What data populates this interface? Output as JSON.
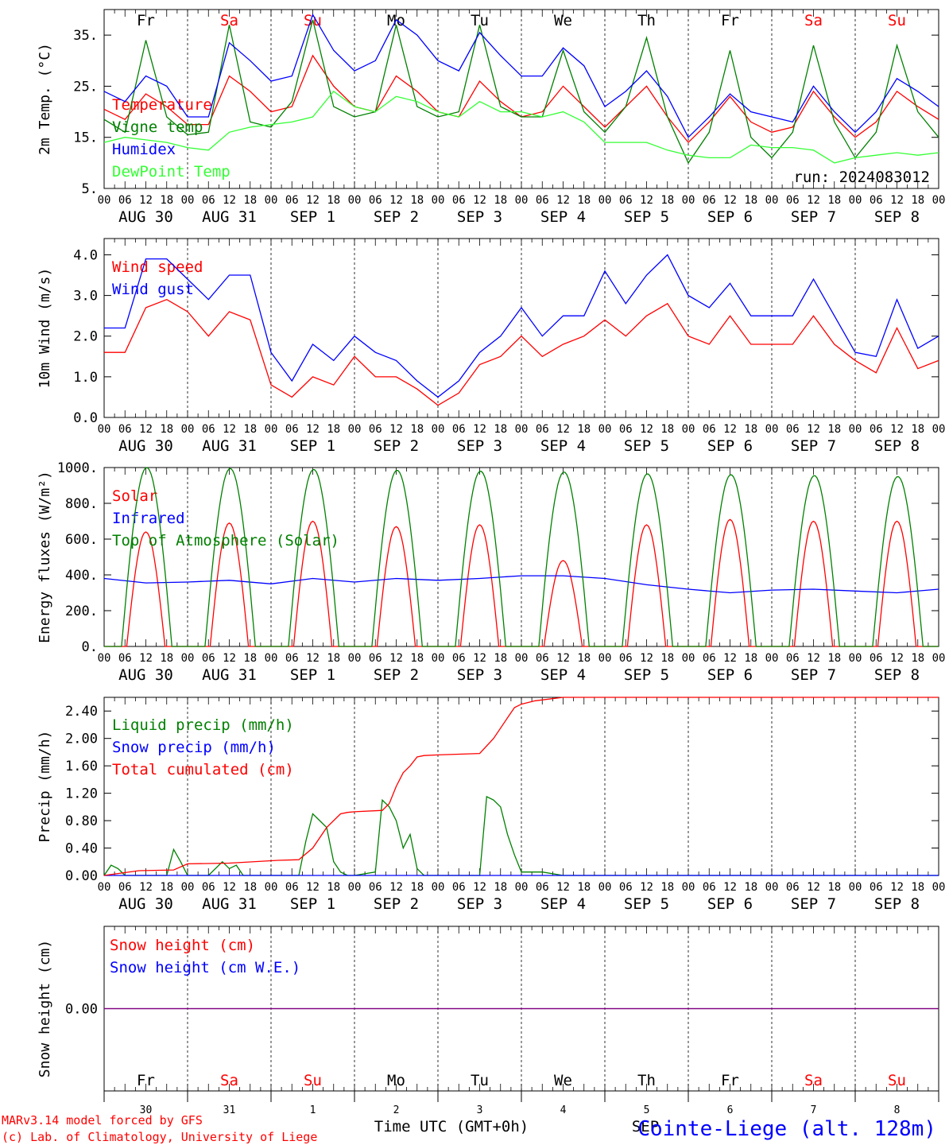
{
  "colors": {
    "red": "#ff0000",
    "darkgreen": "#008000",
    "blue": "#0000ff",
    "lightgreen": "#33ff33",
    "purple": "#800080",
    "weekday": "#000000",
    "weekend": "#ff0000"
  },
  "day_names": [
    {
      "name": "Fr",
      "weekend": false
    },
    {
      "name": "Sa",
      "weekend": true
    },
    {
      "name": "Su",
      "weekend": true
    },
    {
      "name": "Mo",
      "weekend": false
    },
    {
      "name": "Tu",
      "weekend": false
    },
    {
      "name": "We",
      "weekend": false
    },
    {
      "name": "Th",
      "weekend": false
    },
    {
      "name": "Fr",
      "weekend": false
    },
    {
      "name": "Sa",
      "weekend": true
    },
    {
      "name": "Su",
      "weekend": true
    }
  ],
  "date_labels": [
    "AUG 30",
    "AUG 31",
    "SEP  1",
    "SEP  2",
    "SEP  3",
    "SEP  4",
    "SEP  5",
    "SEP  6",
    "SEP  7",
    "SEP  8"
  ],
  "hour_labels": [
    "00",
    "06",
    "12",
    "18"
  ],
  "hour_end_label": "00",
  "day_numbers": [
    "30",
    "31",
    "1",
    "2",
    "3",
    "4",
    "5",
    "6",
    "7",
    "8"
  ],
  "footer": {
    "model": "MARv3.14 model forced by GFS",
    "lab": "(c) Lab. of Climatology, University of Liege",
    "time_axis": "Time UTC (GMT+0h)",
    "month": "SEP",
    "station": "Cointe-Liege (alt. 128m)"
  },
  "chart_data": [
    {
      "type": "line",
      "ylabel": "2m Temp. (°C)",
      "ylim": [
        5,
        40
      ],
      "yticks": [
        "5.",
        "15.",
        "25.",
        "35."
      ],
      "annotation": "run: 2024083012",
      "x_unit": "hours since AUG 30 00 UTC",
      "series": [
        {
          "name": "Temperature",
          "color": "red",
          "x": [
            0,
            6,
            12,
            18,
            24,
            30,
            36,
            42,
            48,
            54,
            60,
            66,
            72,
            78,
            84,
            90,
            96,
            102,
            108,
            114,
            120,
            126,
            132,
            138,
            144,
            150,
            156,
            162,
            168,
            174,
            180,
            186,
            192,
            198,
            204,
            210,
            216,
            222,
            228,
            234,
            240
          ],
          "y": [
            20.5,
            18.5,
            23.5,
            21,
            17.5,
            17.5,
            27,
            24,
            20,
            21,
            31,
            25,
            21,
            20,
            27,
            24,
            20,
            19,
            26,
            22,
            19,
            20,
            25,
            21,
            17,
            21,
            25,
            19,
            14,
            18,
            23,
            18,
            16,
            17,
            24,
            19,
            15,
            18,
            24,
            21,
            18.5
          ]
        },
        {
          "name": "Vigne temp",
          "color": "darkgreen",
          "x": [
            0,
            6,
            12,
            18,
            24,
            30,
            36,
            42,
            48,
            54,
            60,
            66,
            72,
            78,
            84,
            90,
            96,
            102,
            108,
            114,
            120,
            126,
            132,
            138,
            144,
            150,
            156,
            162,
            168,
            174,
            180,
            186,
            192,
            198,
            204,
            210,
            216,
            222,
            228,
            234,
            240
          ],
          "y": [
            18.5,
            16,
            34,
            19,
            15.5,
            16,
            37,
            18,
            17,
            22,
            38,
            21,
            19,
            20,
            37,
            21,
            19,
            20,
            37,
            21,
            19,
            19,
            32,
            20,
            16,
            21,
            34.5,
            19,
            10,
            16,
            32,
            15,
            11,
            16,
            33,
            18,
            11,
            16,
            33,
            20,
            15
          ]
        },
        {
          "name": "Humidex",
          "color": "blue",
          "x": [
            0,
            6,
            12,
            18,
            24,
            30,
            36,
            42,
            48,
            54,
            60,
            66,
            72,
            78,
            84,
            90,
            96,
            102,
            108,
            114,
            120,
            126,
            132,
            138,
            144,
            150,
            156,
            162,
            168,
            174,
            180,
            186,
            192,
            198,
            204,
            210,
            216,
            222,
            228,
            234,
            240
          ],
          "y": [
            24,
            22,
            27,
            25,
            19,
            19,
            33.5,
            30,
            26,
            27,
            39,
            32,
            28,
            30,
            38,
            35,
            30,
            28,
            35.5,
            31,
            27,
            27,
            32.5,
            29,
            21,
            24,
            28,
            23,
            15,
            19,
            23.5,
            20,
            19,
            18,
            25,
            20,
            16,
            20,
            26.5,
            24,
            21
          ]
        },
        {
          "name": "DewPoint Temp",
          "color": "lightgreen",
          "x": [
            0,
            6,
            12,
            18,
            24,
            30,
            36,
            42,
            48,
            54,
            60,
            66,
            72,
            78,
            84,
            90,
            96,
            102,
            108,
            114,
            120,
            126,
            132,
            138,
            144,
            150,
            156,
            162,
            168,
            174,
            180,
            186,
            192,
            198,
            204,
            210,
            216,
            222,
            228,
            234,
            240
          ],
          "y": [
            14,
            15,
            14.5,
            14,
            13,
            12.5,
            16,
            17,
            17.5,
            18,
            19,
            24,
            21,
            20,
            23,
            22,
            20,
            19,
            22,
            20,
            20,
            19,
            20,
            18,
            14,
            14,
            14,
            12.5,
            11.5,
            11,
            11,
            13.5,
            13,
            13,
            12.5,
            10,
            11,
            11.5,
            12,
            11.5,
            12
          ]
        }
      ]
    },
    {
      "type": "line",
      "ylabel": "10m Wind (m/s)",
      "ylim": [
        0,
        4.4
      ],
      "yticks": [
        "0.0",
        "1.0",
        "2.0",
        "3.0",
        "4.0"
      ],
      "x_unit": "hours since AUG 30 00 UTC",
      "series": [
        {
          "name": "Wind speed",
          "color": "red",
          "x": [
            0,
            6,
            12,
            18,
            24,
            30,
            36,
            42,
            48,
            54,
            60,
            66,
            72,
            78,
            84,
            90,
            96,
            102,
            108,
            114,
            120,
            126,
            132,
            138,
            144,
            150,
            156,
            162,
            168,
            174,
            180,
            186,
            192,
            198,
            204,
            210,
            216,
            222,
            228,
            234,
            240
          ],
          "y": [
            1.6,
            1.6,
            2.7,
            2.9,
            2.6,
            2.0,
            2.6,
            2.4,
            0.8,
            0.5,
            1.0,
            0.8,
            1.5,
            1.0,
            1.0,
            0.7,
            0.3,
            0.6,
            1.3,
            1.5,
            2.0,
            1.5,
            1.8,
            2.0,
            2.4,
            2.0,
            2.5,
            2.8,
            2.0,
            1.8,
            2.5,
            1.8,
            1.8,
            1.8,
            2.5,
            1.8,
            1.4,
            1.1,
            2.2,
            1.2,
            1.4
          ]
        },
        {
          "name": "Wind gust",
          "color": "blue",
          "x": [
            0,
            6,
            12,
            18,
            24,
            30,
            36,
            42,
            48,
            54,
            60,
            66,
            72,
            78,
            84,
            90,
            96,
            102,
            108,
            114,
            120,
            126,
            132,
            138,
            144,
            150,
            156,
            162,
            168,
            174,
            180,
            186,
            192,
            198,
            204,
            210,
            216,
            222,
            228,
            234,
            240
          ],
          "y": [
            2.2,
            2.2,
            3.9,
            3.9,
            3.4,
            2.9,
            3.5,
            3.5,
            1.6,
            0.9,
            1.8,
            1.4,
            2.0,
            1.6,
            1.4,
            0.9,
            0.5,
            0.9,
            1.6,
            2.0,
            2.7,
            2.0,
            2.5,
            2.5,
            3.6,
            2.8,
            3.5,
            4.0,
            3.0,
            2.7,
            3.3,
            2.5,
            2.5,
            2.5,
            3.4,
            2.5,
            1.6,
            1.5,
            2.9,
            1.7,
            2.0
          ]
        }
      ]
    },
    {
      "type": "line",
      "ylabel": "Energy fluxes (W/m²)",
      "ylim": [
        0,
        1000
      ],
      "yticks": [
        "0.",
        "200.",
        "400.",
        "600.",
        "800.",
        "1000."
      ],
      "x_unit": "hours since AUG 30 00 UTC",
      "series": [
        {
          "name": "Solar",
          "color": "red",
          "peaks": [
            640,
            690,
            700,
            670,
            680,
            480,
            680,
            710,
            700,
            700
          ]
        },
        {
          "name": "Infrared",
          "color": "blue",
          "x": [
            0,
            12,
            24,
            36,
            48,
            60,
            72,
            84,
            96,
            108,
            120,
            132,
            144,
            156,
            168,
            180,
            192,
            204,
            216,
            228,
            240
          ],
          "y": [
            380,
            355,
            360,
            370,
            350,
            380,
            360,
            380,
            370,
            380,
            395,
            395,
            380,
            345,
            320,
            300,
            315,
            320,
            310,
            300,
            320
          ]
        },
        {
          "name": "Top of Atmosphere (Solar)",
          "color": "darkgreen",
          "peaks": [
            1000,
            995,
            990,
            985,
            980,
            975,
            965,
            960,
            955,
            950
          ]
        }
      ]
    },
    {
      "type": "line",
      "ylabel": "Precip (mm/h)",
      "ylim": [
        0,
        2.6
      ],
      "yticks": [
        "0.00",
        "0.40",
        "0.80",
        "1.20",
        "1.60",
        "2.00",
        "2.40"
      ],
      "x_unit": "hours since AUG 30 00 UTC",
      "series": [
        {
          "name": "Liquid precip (mm/h)",
          "color": "darkgreen",
          "x": [
            0,
            2,
            4,
            6,
            12,
            18,
            20,
            22,
            24,
            30,
            34,
            36,
            38,
            40,
            48,
            56,
            58,
            60,
            62,
            64,
            66,
            68,
            70,
            72,
            78,
            80,
            82,
            84,
            86,
            88,
            90,
            92,
            96,
            108,
            110,
            112,
            114,
            116,
            118,
            120,
            126,
            132,
            240
          ],
          "y": [
            0,
            0.15,
            0.1,
            0,
            0,
            0,
            0.38,
            0.2,
            0,
            0,
            0.2,
            0.1,
            0.15,
            0,
            0,
            0,
            0.5,
            0.9,
            0.8,
            0.7,
            0.2,
            0.05,
            0,
            0,
            0.05,
            1.1,
            1.0,
            0.8,
            0.4,
            0.6,
            0.1,
            0,
            0,
            0,
            1.15,
            1.1,
            1.0,
            0.6,
            0.3,
            0.05,
            0.05,
            0,
            0
          ]
        },
        {
          "name": "Snow precip (mm/h)",
          "color": "blue",
          "x": [
            0,
            240
          ],
          "y": [
            0,
            0
          ]
        },
        {
          "name": "Total cumulated (cm)",
          "color": "red",
          "x": [
            0,
            10,
            20,
            24,
            36,
            50,
            56,
            60,
            64,
            68,
            70,
            72,
            80,
            82,
            84,
            86,
            88,
            90,
            92,
            96,
            108,
            112,
            116,
            118,
            120,
            124,
            132,
            240
          ],
          "y": [
            0,
            0.07,
            0.08,
            0.17,
            0.18,
            0.22,
            0.23,
            0.4,
            0.7,
            0.9,
            0.92,
            0.93,
            0.95,
            1.05,
            1.3,
            1.5,
            1.6,
            1.73,
            1.75,
            1.76,
            1.78,
            2.0,
            2.3,
            2.45,
            2.5,
            2.55,
            2.6,
            2.6
          ]
        }
      ]
    },
    {
      "type": "line",
      "ylabel": "Snow height (cm)",
      "ylim": [
        -1,
        1
      ],
      "yticks": [
        "0.00"
      ],
      "x_unit": "hours since AUG 30 00 UTC",
      "series": [
        {
          "name": "Snow height (cm)",
          "color": "red",
          "x": [
            0,
            240
          ],
          "y": [
            0,
            0
          ]
        },
        {
          "name": "Snow height (cm W.E.)",
          "color": "blue",
          "x": [
            0,
            240
          ],
          "y": [
            0,
            0
          ]
        }
      ]
    }
  ]
}
